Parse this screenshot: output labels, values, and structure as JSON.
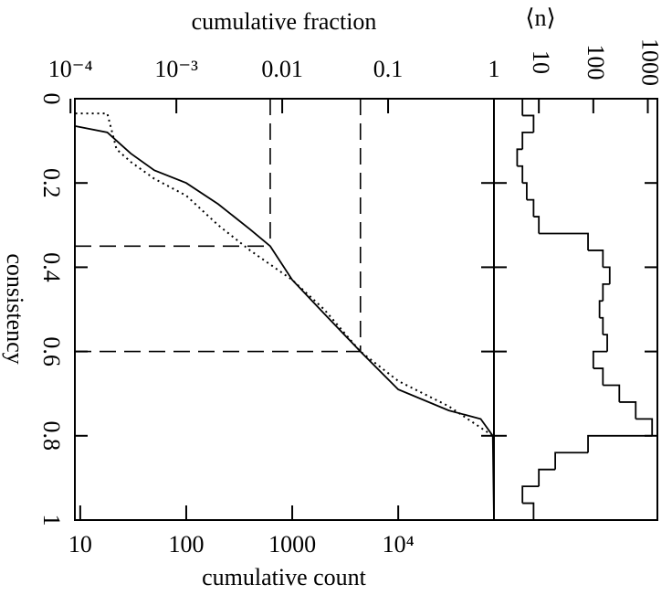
{
  "chart_data": [
    {
      "type": "line",
      "xlabel": "cumulative count",
      "x2label": "cumulative fraction",
      "ylabel": "consistency",
      "xscale": "log",
      "xlim": [
        8.9,
        80000
      ],
      "xticks": [
        10,
        100,
        1000,
        {
          "value": 10000,
          "label": "10⁴"
        }
      ],
      "x2scale": "log",
      "x2lim": [
        0.00011,
        1
      ],
      "x2ticks": [
        {
          "value": 0.0001,
          "label": "10⁻⁴"
        },
        {
          "value": 0.001,
          "label": "10⁻³"
        },
        0.01,
        0.1,
        1
      ],
      "ylim": [
        0,
        1
      ],
      "yinverted": true,
      "yticks": [
        0,
        0.2,
        0.4,
        0.6,
        0.8,
        1
      ],
      "series": [
        {
          "style": "solid",
          "color": "#000000",
          "x": [
            9,
            18,
            30,
            50,
            100,
            200,
            400,
            620,
            1000,
            2000,
            4400,
            10000,
            30000,
            60000,
            78000,
            80000
          ],
          "values": [
            0.065,
            0.08,
            0.13,
            0.17,
            0.2,
            0.25,
            0.31,
            0.35,
            0.43,
            0.51,
            0.6,
            0.69,
            0.74,
            0.76,
            0.8,
            1.0
          ]
        },
        {
          "style": "dotted",
          "color": "#000000",
          "x": [
            9,
            18,
            22,
            30,
            50,
            100,
            200,
            400,
            1000,
            2000,
            4400,
            10000,
            30000,
            78000
          ],
          "values": [
            0.035,
            0.035,
            0.12,
            0.15,
            0.19,
            0.23,
            0.3,
            0.36,
            0.43,
            0.5,
            0.6,
            0.67,
            0.73,
            0.8
          ]
        }
      ],
      "reference_lines": [
        {
          "x": 620,
          "y": 0.35
        },
        {
          "x": 4400,
          "y": 0.6
        }
      ]
    },
    {
      "type": "histogram",
      "orientation": "horizontal",
      "color": "#000000",
      "xlabel": "⟨n⟩",
      "xscale": "log",
      "xlim": [
        1.5,
        1500
      ],
      "xticks": [
        10,
        100,
        1000
      ],
      "ylim": [
        0,
        1
      ],
      "yinverted": true,
      "yticks": [
        0,
        0.2,
        0.4,
        0.6,
        0.8,
        1
      ],
      "bins": [
        0,
        0.04,
        0.08,
        0.12,
        0.16,
        0.2,
        0.24,
        0.28,
        0.32,
        0.36,
        0.4,
        0.44,
        0.48,
        0.52,
        0.56,
        0.6,
        0.64,
        0.68,
        0.72,
        0.76,
        0.8,
        0.84,
        0.88,
        0.92,
        0.96,
        1.0
      ],
      "counts": [
        5,
        8,
        5,
        4,
        5,
        6,
        8,
        10,
        80,
        150,
        200,
        150,
        130,
        150,
        180,
        100,
        150,
        300,
        600,
        1200,
        80,
        20,
        10,
        5,
        8
      ]
    }
  ]
}
